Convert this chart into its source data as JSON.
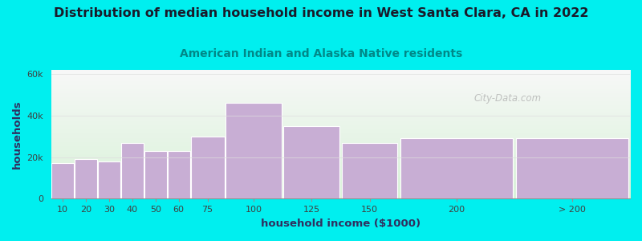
{
  "title": "Distribution of median household income in West Santa Clara, CA in 2022",
  "subtitle": "American Indian and Alaska Native residents",
  "xlabel": "household income ($1000)",
  "ylabel": "households",
  "background_color": "#00EFEF",
  "plot_bg_top": "#d8f2d8",
  "plot_bg_bottom": "#f8f8f8",
  "bar_color": "#c8aed4",
  "bar_edge_color": "#ffffff",
  "categories": [
    "10",
    "20",
    "30",
    "40",
    "50",
    "60",
    "75",
    "100",
    "125",
    "150",
    "200",
    "> 200"
  ],
  "values": [
    17000,
    19000,
    18000,
    27000,
    23000,
    23000,
    30000,
    46000,
    35000,
    27000,
    29000,
    29000
  ],
  "ylim": [
    0,
    62000
  ],
  "yticks": [
    0,
    20000,
    40000,
    60000
  ],
  "ytick_labels": [
    "0",
    "20k",
    "40k",
    "60k"
  ],
  "title_fontsize": 11.5,
  "subtitle_fontsize": 10,
  "watermark": "City-Data.com",
  "bar_edges": [
    0,
    10,
    20,
    30,
    40,
    50,
    60,
    75,
    100,
    125,
    150,
    200,
    250
  ],
  "xtick_positions": [
    5,
    15,
    25,
    35,
    45,
    55,
    67.5,
    87.5,
    112.5,
    137.5,
    175,
    225
  ],
  "xtick_labels": [
    "10",
    "20",
    "30",
    "40",
    "50",
    "60",
    "75",
    "100",
    "125",
    "150",
    "200",
    "> 200"
  ]
}
